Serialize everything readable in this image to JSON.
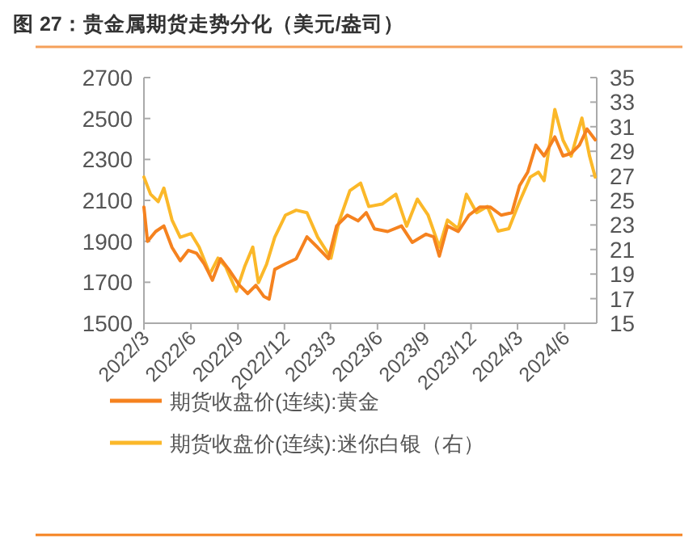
{
  "chart_data": {
    "type": "line",
    "title": "图 27：贵金属期货走势分化（美元/盎司）",
    "legend": "bottom",
    "grid": false,
    "xlim": [
      "2022-03-01",
      "2024-08-03"
    ],
    "xticks": [
      {
        "value": "2022-03-01",
        "label": "2022/3"
      },
      {
        "value": "2022-06-01",
        "label": "2022/6"
      },
      {
        "value": "2022-09-01",
        "label": "2022/9"
      },
      {
        "value": "2022-12-01",
        "label": "2022/12"
      },
      {
        "value": "2023-03-01",
        "label": "2023/3"
      },
      {
        "value": "2023-06-01",
        "label": "2023/6"
      },
      {
        "value": "2023-09-01",
        "label": "2023/9"
      },
      {
        "value": "2023-12-01",
        "label": "2023/12"
      },
      {
        "value": "2024-03-01",
        "label": "2024/3"
      },
      {
        "value": "2024-06-01",
        "label": "2024/6"
      }
    ],
    "ylim": [
      1500,
      2700
    ],
    "yticks": [
      1500,
      1700,
      1900,
      2100,
      2300,
      2500,
      2700
    ],
    "y2lim": [
      15,
      35
    ],
    "y2ticks": [
      15,
      17,
      19,
      21,
      23,
      25,
      27,
      29,
      31,
      33,
      35
    ],
    "series": [
      {
        "name": "期货收盘价(连续):黄金",
        "color": "#f5821f",
        "x": [
          "2022-03-01",
          "2022-03-08",
          "2022-03-24",
          "2022-04-09",
          "2022-04-25",
          "2022-05-11",
          "2022-05-27",
          "2022-06-12",
          "2022-06-27",
          "2022-07-13",
          "2022-07-29",
          "2022-08-14",
          "2022-09-04",
          "2022-09-20",
          "2022-10-06",
          "2022-10-22",
          "2022-11-01",
          "2022-11-12",
          "2022-12-03",
          "2022-12-24",
          "2023-01-14",
          "2023-02-04",
          "2023-02-25",
          "2023-03-13",
          "2023-04-03",
          "2023-04-24",
          "2023-05-10",
          "2023-05-26",
          "2023-06-21",
          "2023-07-18",
          "2023-08-08",
          "2023-09-04",
          "2023-09-19",
          "2023-09-30",
          "2023-10-16",
          "2023-11-06",
          "2023-11-27",
          "2023-12-18",
          "2024-01-08",
          "2024-01-29",
          "2024-02-19",
          "2024-03-05",
          "2024-03-21",
          "2024-04-06",
          "2024-04-22",
          "2024-05-13",
          "2024-05-29",
          "2024-06-14",
          "2024-06-30",
          "2024-07-15",
          "2024-07-31"
        ],
        "values": [
          2067,
          1900,
          1948,
          1975,
          1870,
          1805,
          1856,
          1842,
          1790,
          1710,
          1815,
          1763,
          1685,
          1645,
          1685,
          1630,
          1618,
          1763,
          1790,
          1815,
          1922,
          1870,
          1815,
          1975,
          2028,
          2000,
          2040,
          1961,
          1948,
          1975,
          1895,
          1935,
          1922,
          1828,
          1975,
          1948,
          2028,
          2067,
          2067,
          2028,
          2040,
          2172,
          2238,
          2370,
          2317,
          2410,
          2317,
          2330,
          2370,
          2449,
          2396
        ]
      },
      {
        "name": "期货收盘价(连续):迷你白银（右）",
        "color": "#fbb829",
        "axis": "y2",
        "x": [
          "2022-03-01",
          "2022-03-14",
          "2022-03-29",
          "2022-04-09",
          "2022-04-25",
          "2022-05-11",
          "2022-06-01",
          "2022-06-17",
          "2022-07-08",
          "2022-07-24",
          "2022-08-08",
          "2022-08-29",
          "2022-09-14",
          "2022-09-30",
          "2022-10-11",
          "2022-10-27",
          "2022-11-12",
          "2022-12-03",
          "2022-12-24",
          "2023-01-14",
          "2023-02-04",
          "2023-03-02",
          "2023-03-18",
          "2023-04-08",
          "2023-04-29",
          "2023-05-15",
          "2023-06-10",
          "2023-07-07",
          "2023-07-28",
          "2023-08-18",
          "2023-09-08",
          "2023-09-30",
          "2023-10-16",
          "2023-11-06",
          "2023-11-22",
          "2023-12-12",
          "2024-01-02",
          "2024-01-23",
          "2024-02-13",
          "2024-03-05",
          "2024-03-26",
          "2024-04-11",
          "2024-04-22",
          "2024-05-13",
          "2024-05-29",
          "2024-06-14",
          "2024-07-05",
          "2024-07-20",
          "2024-07-31"
        ],
        "values": [
          26.9,
          25.5,
          24.9,
          26.0,
          23.4,
          22.0,
          22.3,
          21.2,
          19.0,
          20.3,
          19.6,
          17.6,
          19.6,
          21.2,
          18.3,
          19.8,
          22.0,
          23.8,
          24.2,
          24.0,
          22.0,
          20.3,
          23.3,
          25.8,
          26.4,
          24.5,
          24.7,
          25.5,
          22.9,
          25.1,
          23.8,
          21.2,
          23.4,
          22.7,
          25.5,
          24.0,
          24.5,
          22.5,
          22.7,
          24.9,
          26.9,
          27.3,
          26.6,
          32.4,
          29.9,
          28.6,
          31.7,
          28.6,
          26.9
        ]
      }
    ]
  }
}
